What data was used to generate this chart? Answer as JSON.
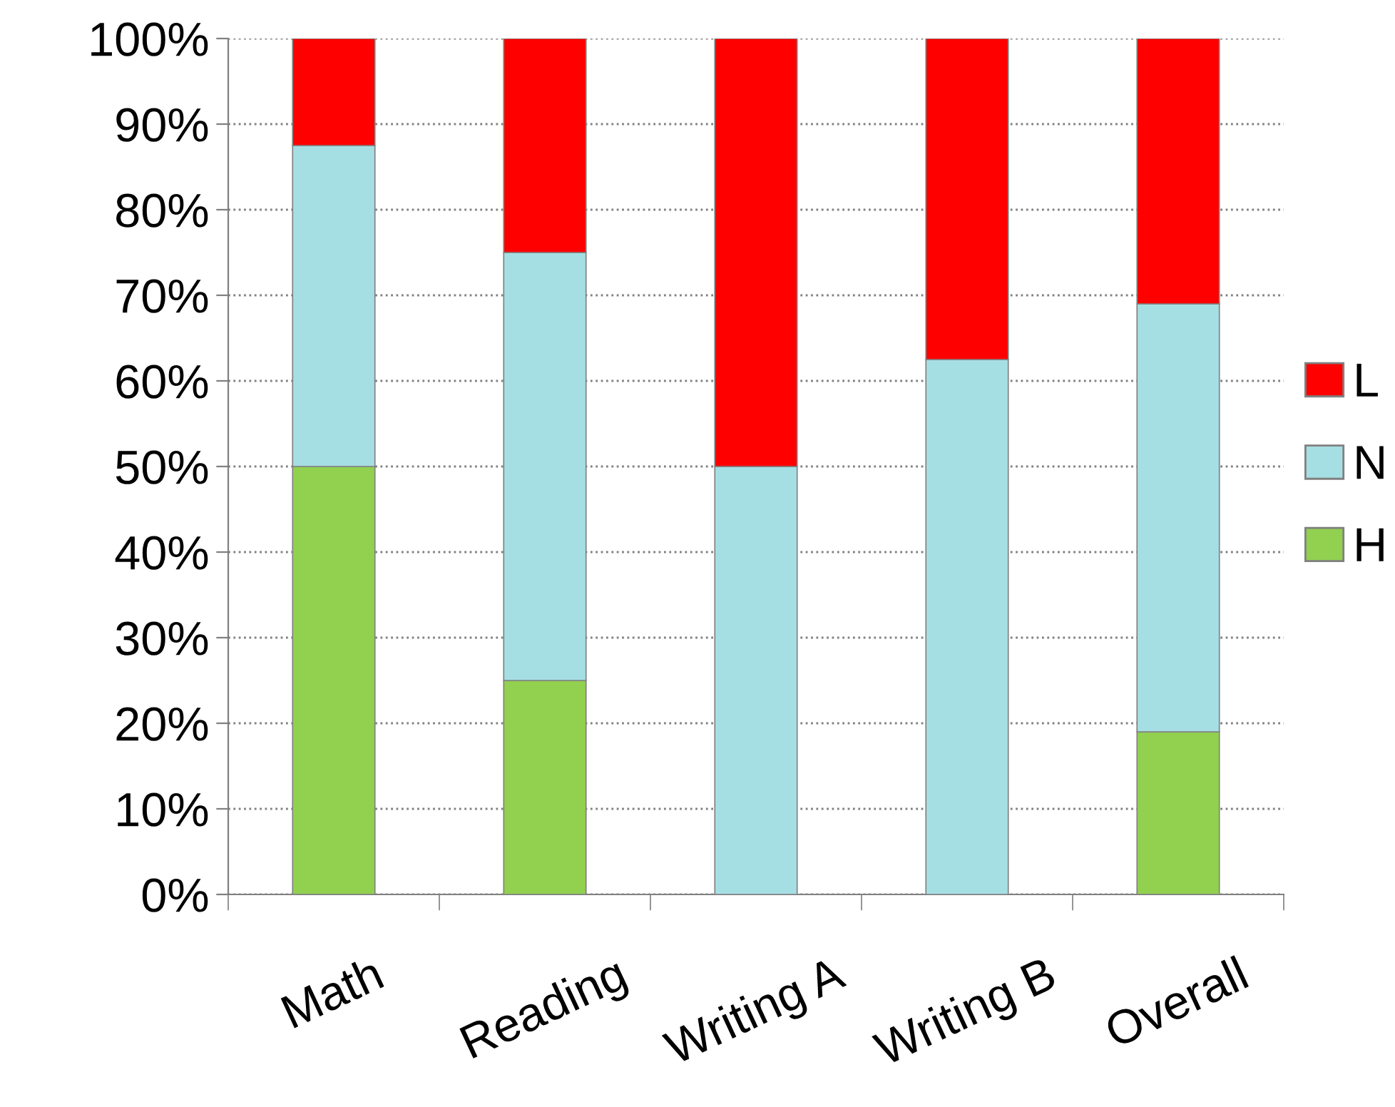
{
  "chart_data": {
    "type": "bar",
    "stacked": true,
    "categories": [
      "Math",
      "Reading",
      "Writing A",
      "Writing B",
      "Overall"
    ],
    "series": [
      {
        "name": "H",
        "color": "#92d050",
        "values": [
          50,
          25,
          0,
          0,
          19
        ]
      },
      {
        "name": "N",
        "color": "#a6dfe3",
        "values": [
          37.5,
          50,
          50,
          62.5,
          50
        ]
      },
      {
        "name": "L",
        "color": "#ff0000",
        "values": [
          12.5,
          25,
          50,
          37.5,
          31
        ]
      }
    ],
    "ylim": [
      0,
      100
    ],
    "yticks": [
      {
        "value": 0,
        "label": "0%"
      },
      {
        "value": 10,
        "label": "10%"
      },
      {
        "value": 20,
        "label": "20%"
      },
      {
        "value": 30,
        "label": "30%"
      },
      {
        "value": 40,
        "label": "40%"
      },
      {
        "value": 50,
        "label": "50%"
      },
      {
        "value": 60,
        "label": "60%"
      },
      {
        "value": 70,
        "label": "70%"
      },
      {
        "value": 80,
        "label": "80%"
      },
      {
        "value": 90,
        "label": "90%"
      },
      {
        "value": 100,
        "label": "100%"
      }
    ],
    "grid": "y",
    "legend": "right"
  }
}
